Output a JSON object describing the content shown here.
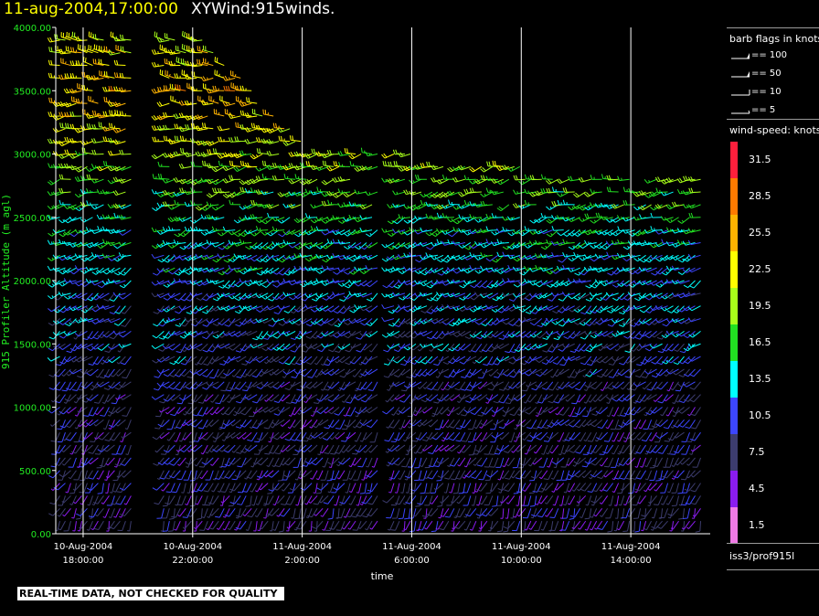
{
  "header": {
    "datetime": "11-aug-2004,17:00:00",
    "product": "XYWind:915winds."
  },
  "footer_note": "REAL-TIME DATA, NOT CHECKED FOR QUALITY",
  "legend": {
    "barb_title": "barb flags in knots",
    "barb_flags": [
      {
        "label": "== 100",
        "knots": 100
      },
      {
        "label": "== 50",
        "knots": 50
      },
      {
        "label": "== 10",
        "knots": 10
      },
      {
        "label": "== 5",
        "knots": 5
      }
    ],
    "speed_title": "wind-speed: knots",
    "speed_bins": [
      {
        "label": "31.5",
        "color": "#ff1f3c"
      },
      {
        "label": "28.5",
        "color": "#ff7a00"
      },
      {
        "label": "25.5",
        "color": "#ffb300"
      },
      {
        "label": "22.5",
        "color": "#ffff00"
      },
      {
        "label": "19.5",
        "color": "#a8ff1a"
      },
      {
        "label": "16.5",
        "color": "#22e022"
      },
      {
        "label": "13.5",
        "color": "#00ffff"
      },
      {
        "label": "10.5",
        "color": "#3c46ff"
      },
      {
        "label": "7.5",
        "color": "#3c3c6e"
      },
      {
        "label": "4.5",
        "color": "#8a1cf0"
      },
      {
        "label": "1.5",
        "color": "#f07ae6"
      }
    ],
    "station": "iss3/prof915l"
  },
  "chart_data": {
    "type": "wind barb time-height",
    "ylabel": "915 Profiler Altitude (m agl)",
    "xlabel": "time",
    "ylim": [
      0,
      4000
    ],
    "y_ticks": [
      "0.00",
      "500.00",
      "1000.00",
      "1500.00",
      "2000.00",
      "2500.00",
      "3000.00",
      "3500.00",
      "4000.00"
    ],
    "y_tick_values": [
      0,
      500,
      1000,
      1500,
      2000,
      2500,
      3000,
      3500,
      4000
    ],
    "x_ticks": [
      {
        "date": "10-Aug-2004",
        "time": "18:00:00"
      },
      {
        "date": "10-Aug-2004",
        "time": "22:00:00"
      },
      {
        "date": "11-Aug-2004",
        "time": "2:00:00"
      },
      {
        "date": "11-Aug-2004",
        "time": "6:00:00"
      },
      {
        "date": "11-Aug-2004",
        "time": "10:00:00"
      },
      {
        "date": "11-Aug-2004",
        "time": "14:00:00"
      }
    ],
    "x_range_hours": [
      -1.0,
      22.9
    ],
    "x_tick_hours": [
      0,
      4,
      8,
      12,
      16,
      20
    ],
    "vertical_grid": true,
    "barbs_per_hour": 5,
    "gate_spacing_m": 100,
    "speed_profile": [
      {
        "alt": 0,
        "kt": 6
      },
      {
        "alt": 500,
        "kt": 8
      },
      {
        "alt": 1000,
        "kt": 8
      },
      {
        "alt": 1500,
        "kt": 10
      },
      {
        "alt": 2000,
        "kt": 12
      },
      {
        "alt": 2500,
        "kt": 15
      },
      {
        "alt": 3000,
        "kt": 20
      },
      {
        "alt": 3500,
        "kt": 25
      },
      {
        "alt": 4000,
        "kt": 20
      }
    ],
    "data_gap_hours": [
      [
        1.8,
        2.8
      ],
      [
        10.9,
        11.3
      ]
    ],
    "top_of_data_m": [
      {
        "hour": -1,
        "alt": 3900
      },
      {
        "hour": 4,
        "alt": 4000
      },
      {
        "hour": 8,
        "alt": 3100
      },
      {
        "hour": 12,
        "alt": 3000
      },
      {
        "hour": 16,
        "alt": 2900
      },
      {
        "hour": 22,
        "alt": 2800
      }
    ]
  }
}
